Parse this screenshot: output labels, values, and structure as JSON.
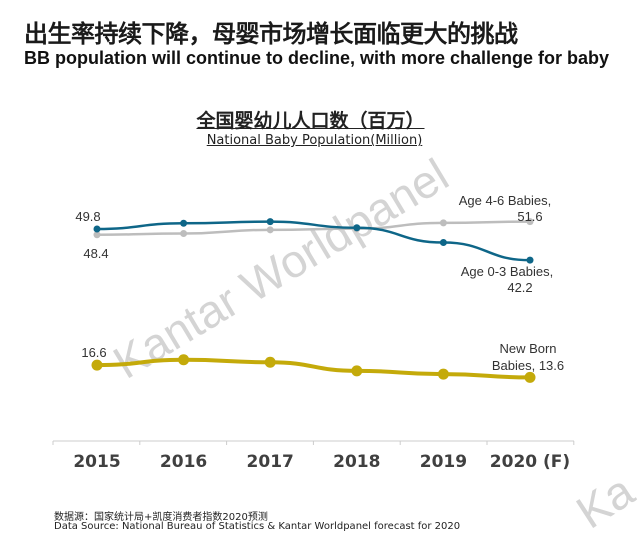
{
  "header": {
    "title_cn": "出生率持续下降，母婴市场增长面临更大的挑战",
    "title_en": "BB population will continue to decline, with more challenge for baby"
  },
  "watermark": "Kantar Worldpanel",
  "watermark_corner": "Ka",
  "chart_data": {
    "type": "line",
    "title": "全国婴幼儿人口数（百万）",
    "subtitle": "National Baby Population(Million)",
    "categories": [
      "2015",
      "2016",
      "2017",
      "2018",
      "2019",
      "2020 (F)"
    ],
    "grid": false,
    "series": [
      {
        "name": "Age 0-3 Babies",
        "color": "#0e6688",
        "values": [
          49.8,
          51.2,
          51.6,
          50.1,
          46.5,
          42.2
        ],
        "start_label": "49.8",
        "end_label_1": "Age 0-3 Babies,",
        "end_label_2": "42.2"
      },
      {
        "name": "Age 4-6 Babies",
        "color": "#bdbdbd",
        "values": [
          48.4,
          48.7,
          49.6,
          49.9,
          51.3,
          51.6
        ],
        "start_label": "48.4",
        "end_label_1": "Age 4-6 Babies,",
        "end_label_2": "51.6"
      },
      {
        "name": "New Born Babies",
        "color": "#c4aa0a",
        "values": [
          16.6,
          17.9,
          17.3,
          15.2,
          14.4,
          13.6
        ],
        "start_label": "16.6",
        "end_label_1": "New Born",
        "end_label_2": "Babies, 13.6"
      }
    ]
  },
  "footer": {
    "source_cn": "数据源：国家统计局+凯度消费者指数2020预测",
    "source_en": "Data Source: National Bureau of Statistics & Kantar Worldpanel forecast for 2020"
  }
}
